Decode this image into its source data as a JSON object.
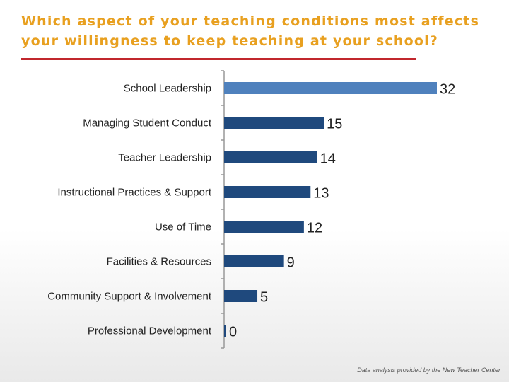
{
  "page": {
    "title_line1": "Which aspect of your teaching conditions most affects",
    "title_line2": "your willingness to keep teaching at your school?",
    "footer": "Data analysis provided by the New Teacher Center"
  },
  "chart_data": {
    "type": "bar",
    "orientation": "horizontal",
    "title": "Which aspect of your teaching conditions most affects your willingness to keep teaching at your school?",
    "xlabel": "",
    "ylabel": "",
    "categories": [
      "School Leadership",
      "Managing Student Conduct",
      "Teacher Leadership",
      "Instructional Practices & Support",
      "Use of Time",
      "Facilities & Resources",
      "Community Support & Involvement",
      "Professional Development"
    ],
    "values": [
      32,
      15,
      14,
      13,
      12,
      9,
      5,
      0
    ],
    "xlim": [
      0,
      32
    ],
    "grid": false,
    "legend": "none",
    "bar_colors": [
      "#4F81BD",
      "#1F497D",
      "#1F497D",
      "#1F497D",
      "#1F497D",
      "#1F497D",
      "#1F497D",
      "#1F497D"
    ],
    "axis_color": "#999999",
    "label_color": "#222222"
  }
}
